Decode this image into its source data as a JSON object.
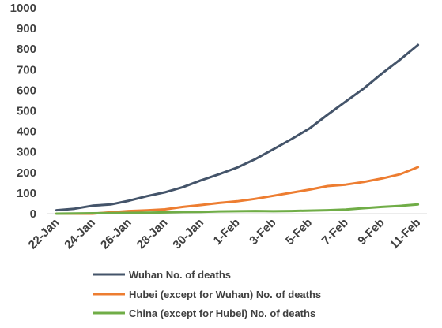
{
  "chart_data": {
    "type": "line",
    "title": "",
    "xlabel": "",
    "ylabel": "",
    "ylim": [
      0,
      1000
    ],
    "y_ticks": [
      "0",
      "100",
      "200",
      "300",
      "400",
      "500",
      "600",
      "700",
      "800",
      "900",
      "1000"
    ],
    "grid": false,
    "legend_position": "bottom",
    "categories": [
      "22-Jan",
      "23-Jan",
      "24-Jan",
      "25-Jan",
      "26-Jan",
      "27-Jan",
      "28-Jan",
      "29-Jan",
      "30-Jan",
      "31-Jan",
      "1-Feb",
      "2-Feb",
      "3-Feb",
      "4-Feb",
      "5-Feb",
      "6-Feb",
      "7-Feb",
      "8-Feb",
      "9-Feb",
      "10-Feb",
      "11-Feb"
    ],
    "x_tick_labels": [
      "22-Jan",
      "24-Jan",
      "26-Jan",
      "28-Jan",
      "30-Jan",
      "1-Feb",
      "3-Feb",
      "5-Feb",
      "7-Feb",
      "9-Feb",
      "11-Feb"
    ],
    "series": [
      {
        "name": "Wuhan No. of deaths",
        "color": "#44546A",
        "values": [
          17,
          24,
          39,
          45,
          63,
          85,
          104,
          129,
          162,
          192,
          224,
          265,
          313,
          362,
          414,
          481,
          545,
          608,
          681,
          748,
          820
        ]
      },
      {
        "name": "Hubei (except for Wuhan) No. of deaths",
        "color": "#ED7D31",
        "values": [
          0,
          0,
          0,
          7,
          13,
          16,
          21,
          33,
          42,
          52,
          60,
          72,
          87,
          102,
          117,
          134,
          141,
          154,
          171,
          191,
          226
        ]
      },
      {
        "name": "China (except for Hubei) No. of deaths",
        "color": "#70AD47",
        "values": [
          0,
          1,
          2,
          3,
          4,
          5,
          6,
          8,
          9,
          11,
          12,
          13,
          12,
          13,
          15,
          17,
          20,
          27,
          33,
          38,
          45
        ]
      }
    ]
  }
}
